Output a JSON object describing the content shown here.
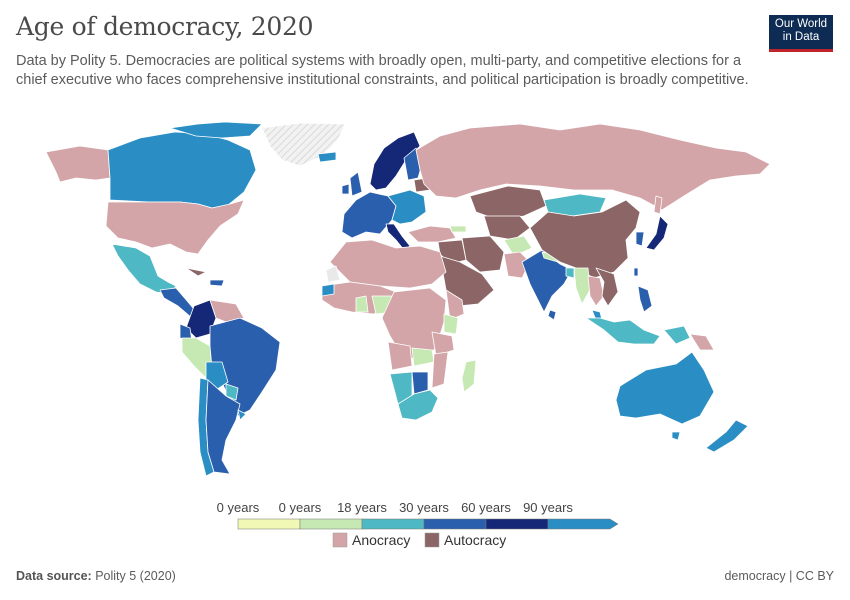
{
  "header": {
    "title": "Age of democracy, 2020",
    "subtitle": "Data by Polity 5. Democracies are political systems with broadly open, multi-party, and competitive elections for a chief executive who faces comprehensive institutional constraints, and political participation is broadly competitive."
  },
  "logo": {
    "line1": "Our World",
    "line2": "in Data"
  },
  "colors": {
    "anocracy": "#d4a5a8",
    "autocracy": "#8c6666",
    "no_data": "#e9e9e9",
    "ocean": "#ffffff",
    "border": "#ffffff",
    "scale": [
      "#f1f7b5",
      "#c6e8b2",
      "#4eb8c4",
      "#2a5fae",
      "#152877",
      "#2a8ec4"
    ]
  },
  "legend": {
    "ticks": [
      "0 years",
      "0 years",
      "18 years",
      "30 years",
      "60 years",
      "90 years"
    ],
    "categories": [
      {
        "label": "Anocracy",
        "color": "#d4a5a8"
      },
      {
        "label": "Autocracy",
        "color": "#8c6666"
      }
    ]
  },
  "footer": {
    "source_label": "Data source:",
    "source_value": "Polity 5 (2020)",
    "right": "democracy | CC BY"
  }
}
